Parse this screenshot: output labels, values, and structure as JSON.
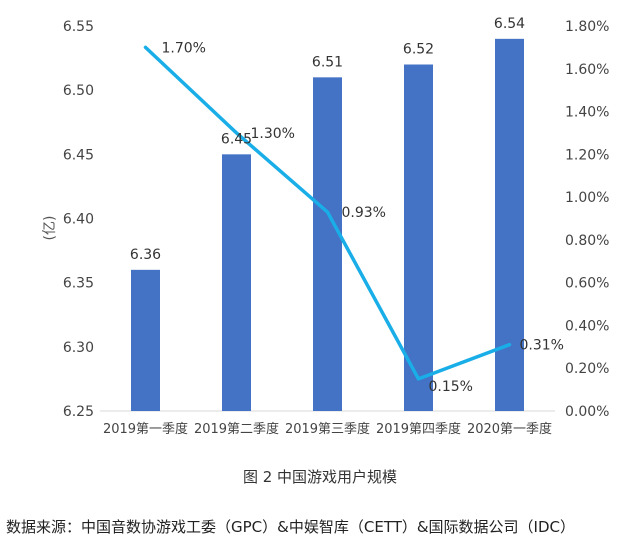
{
  "chart_data": {
    "type": "bar",
    "categories": [
      "2019第一季度",
      "2019第二季度",
      "2019第三季度",
      "2019第四季度",
      "2020第一季度"
    ],
    "series": [
      {
        "type": "bar",
        "axis": "left",
        "color": "#4472C4",
        "values": [
          6.36,
          6.45,
          6.51,
          6.52,
          6.54
        ],
        "labels": [
          "6.36",
          "6.45",
          "6.51",
          "6.52",
          "6.54"
        ]
      },
      {
        "type": "line",
        "axis": "right",
        "color": "#1AAEE8",
        "values": [
          0.017,
          0.013,
          0.0093,
          0.0015,
          0.0031
        ],
        "labels": [
          "1.70%",
          "1.30%",
          "0.93%",
          "0.15%",
          "0.31%"
        ]
      }
    ],
    "ylabel": "(亿)",
    "ylim": [
      6.25,
      6.55
    ],
    "y_ticks": [
      "6.25",
      "6.30",
      "6.35",
      "6.40",
      "6.45",
      "6.50",
      "6.55"
    ],
    "y2lim": [
      0,
      0.018
    ],
    "y2_ticks": [
      "0.00%",
      "0.20%",
      "0.40%",
      "0.60%",
      "0.80%",
      "1.00%",
      "1.20%",
      "1.40%",
      "1.60%",
      "1.80%"
    ],
    "grid": false,
    "legend": "none"
  },
  "caption": "图 2 中国游戏用户规模",
  "source": "数据来源：中国音数协游戏工委（GPC）&中娱智库（CETT）&国际数据公司（IDC）"
}
